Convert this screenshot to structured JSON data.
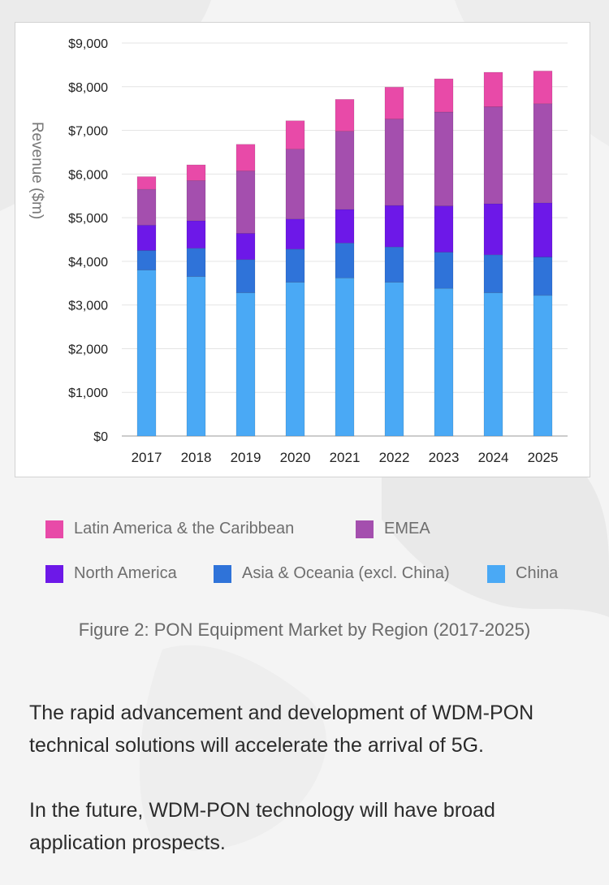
{
  "chart_data": {
    "type": "bar",
    "stacked": true,
    "ylabel": "Revenue  ($m)",
    "ylim": [
      0,
      9000
    ],
    "yticks": [
      0,
      1000,
      2000,
      3000,
      4000,
      5000,
      6000,
      7000,
      8000,
      9000
    ],
    "ytick_labels": [
      "$0",
      "$1,000",
      "$2,000",
      "$3,000",
      "$4,000",
      "$5,000",
      "$6,000",
      "$7,000",
      "$8,000",
      "$9,000"
    ],
    "categories": [
      "2017",
      "2018",
      "2019",
      "2020",
      "2021",
      "2022",
      "2023",
      "2024",
      "2025"
    ],
    "grid": true,
    "legend_position": "bottom",
    "series": [
      {
        "name": "China",
        "color": "#4aa9f5",
        "values": [
          3800,
          3650,
          3280,
          3520,
          3620,
          3520,
          3380,
          3280,
          3220
        ]
      },
      {
        "name": "Asia & Oceania (excl. China)",
        "color": "#2f73d9",
        "values": [
          450,
          650,
          760,
          760,
          800,
          810,
          830,
          870,
          880
        ]
      },
      {
        "name": "North America",
        "color": "#6d18e8",
        "values": [
          580,
          630,
          600,
          690,
          770,
          950,
          1060,
          1170,
          1240
        ]
      },
      {
        "name": "EMEA",
        "color": "#a44fae",
        "values": [
          820,
          920,
          1430,
          1600,
          1790,
          1980,
          2150,
          2220,
          2270
        ]
      },
      {
        "name": "Latin America & the Caribbean",
        "color": "#e84aa8",
        "values": [
          290,
          360,
          610,
          650,
          730,
          730,
          760,
          790,
          750
        ]
      }
    ]
  },
  "legend": [
    {
      "label": "Latin America & the Caribbean",
      "color": "#e84aa8"
    },
    {
      "label": "EMEA",
      "color": "#a44fae"
    },
    {
      "label": "North America",
      "color": "#6d18e8"
    },
    {
      "label": "Asia & Oceania (excl. China)",
      "color": "#2f73d9"
    },
    {
      "label": "China",
      "color": "#4aa9f5"
    }
  ],
  "caption": "Figure 2: PON Equipment Market by Region (2017-2025)",
  "paragraphs": [
    "The rapid advancement and development of WDM-PON technical solutions will accelerate the arrival of 5G.",
    "In the future, WDM-PON technology will have broad application prospects."
  ]
}
